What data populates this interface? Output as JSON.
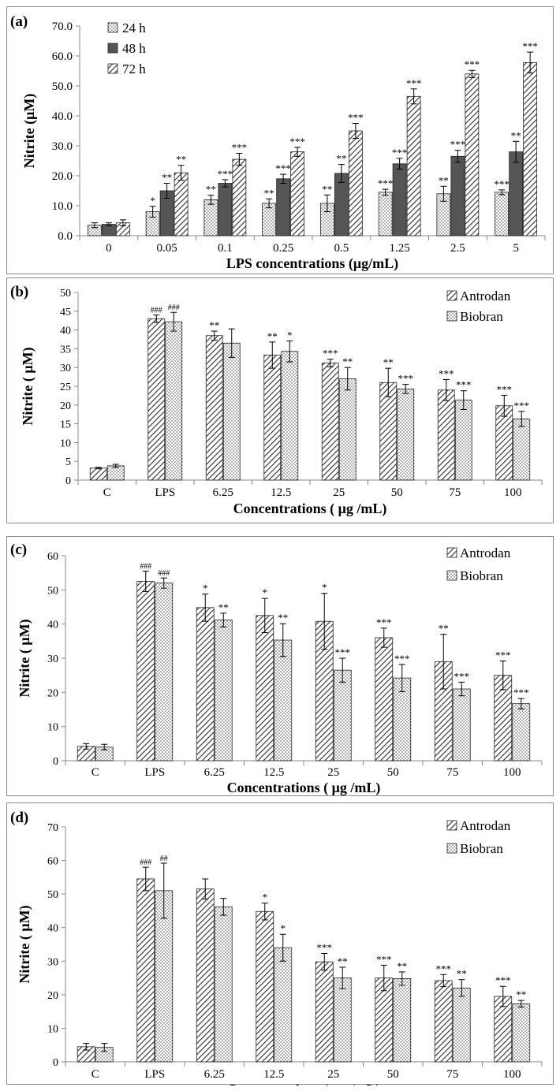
{
  "colors": {
    "frame": "#8a8a8a",
    "axis": "#888888",
    "bar_dark": "#555555",
    "bar_hatch": "#bdbdbd",
    "text": "#000000"
  },
  "chart_data": [
    {
      "type": "bar",
      "panel_label": "(a)",
      "ylabel": "Nitrite (μM)",
      "xlabel": "LPS concentrations (μg/mL)",
      "ylim": [
        0,
        70
      ],
      "yticks": [
        "0.0",
        "10.0",
        "20.0",
        "30.0",
        "40.0",
        "50.0",
        "60.0",
        "70.0"
      ],
      "legend_position": "top-left",
      "categories": [
        "0",
        "0.05",
        "0.1",
        "0.25",
        "0.5",
        "1.25",
        "2.5",
        "5"
      ],
      "series": [
        {
          "name": "24 h",
          "pattern": "dots",
          "values": [
            3.5,
            8.0,
            12.0,
            10.8,
            10.8,
            14.5,
            14.0,
            14.5
          ],
          "errors": [
            0.8,
            1.8,
            1.5,
            1.5,
            2.8,
            1.0,
            2.5,
            0.8
          ],
          "annotations": [
            "",
            "*",
            "**",
            "**",
            "**",
            "***",
            "**",
            "***"
          ]
        },
        {
          "name": "48 h",
          "pattern": "solid",
          "values": [
            3.8,
            15.0,
            17.5,
            19.0,
            20.8,
            24.0,
            26.5,
            28.0
          ],
          "errors": [
            0.5,
            2.5,
            1.2,
            1.5,
            3.0,
            1.8,
            2.0,
            3.5
          ],
          "annotations": [
            "",
            "**",
            "***",
            "***",
            "**",
            "***",
            "***",
            "**"
          ]
        },
        {
          "name": "72 h",
          "pattern": "hatch",
          "values": [
            4.3,
            21.0,
            25.5,
            28.0,
            35.0,
            46.5,
            54.0,
            57.8
          ],
          "errors": [
            1.0,
            2.5,
            2.0,
            1.5,
            2.5,
            2.5,
            1.2,
            3.5
          ],
          "annotations": [
            "",
            "**",
            "***",
            "***",
            "***",
            "***",
            "***",
            "***"
          ]
        }
      ]
    },
    {
      "type": "bar",
      "panel_label": "(b)",
      "ylabel": "Nitrite ( μM)",
      "xlabel": "Concentrations ( μg /mL)",
      "ylim": [
        0,
        50
      ],
      "yticks": [
        "0",
        "5",
        "10",
        "15",
        "20",
        "25",
        "30",
        "35",
        "40",
        "45",
        "50"
      ],
      "legend_position": "top-right",
      "categories": [
        "C",
        "LPS",
        "6.25",
        "12.5",
        "25",
        "50",
        "75",
        "100"
      ],
      "series": [
        {
          "name": "Antrodan",
          "pattern": "hatch",
          "values": [
            3.2,
            43.0,
            38.5,
            33.3,
            31.2,
            26.0,
            24.0,
            19.8
          ],
          "errors": [
            0.2,
            1.0,
            1.2,
            3.5,
            1.0,
            3.8,
            2.8,
            2.8
          ],
          "annotations": [
            "",
            "###",
            "**",
            "**",
            "***",
            "**",
            "***",
            "***"
          ]
        },
        {
          "name": "Biobran",
          "pattern": "dots",
          "values": [
            3.8,
            42.2,
            36.5,
            34.3,
            27.0,
            24.3,
            21.3,
            16.3
          ],
          "errors": [
            0.4,
            2.5,
            3.8,
            2.8,
            3.0,
            1.2,
            2.5,
            2.0
          ],
          "annotations": [
            "",
            "###",
            "",
            "*",
            "**",
            "***",
            "***",
            "***"
          ]
        }
      ]
    },
    {
      "type": "bar",
      "panel_label": "(c)",
      "ylabel": "Nitrite ( μM)",
      "xlabel": "Concentrations ( μg /mL)",
      "ylim": [
        0,
        60
      ],
      "yticks": [
        "0",
        "10",
        "20",
        "30",
        "40",
        "50",
        "60"
      ],
      "legend_position": "top-right",
      "categories": [
        "C",
        "LPS",
        "6.25",
        "12.5",
        "25",
        "50",
        "75",
        "100"
      ],
      "series": [
        {
          "name": "Antrodan",
          "pattern": "hatch",
          "values": [
            4.2,
            52.5,
            44.8,
            42.5,
            40.8,
            36.0,
            29.0,
            25.0
          ],
          "errors": [
            0.8,
            3.0,
            4.0,
            5.0,
            8.2,
            2.8,
            8.0,
            4.2
          ],
          "annotations": [
            "",
            "###",
            "*",
            "*",
            "*",
            "***",
            "**",
            "***"
          ]
        },
        {
          "name": "Biobran",
          "pattern": "dots",
          "values": [
            4.0,
            52.0,
            41.2,
            35.3,
            26.5,
            24.2,
            21.0,
            16.7
          ],
          "errors": [
            0.8,
            1.5,
            2.0,
            4.8,
            3.5,
            4.0,
            2.0,
            1.5
          ],
          "annotations": [
            "",
            "###",
            "**",
            "**",
            "***",
            "***",
            "***",
            "***"
          ]
        }
      ]
    },
    {
      "type": "bar",
      "panel_label": "(d)",
      "ylabel": "Nitrite ( μM)",
      "xlabel": "Concentrations ( μg /mL)",
      "ylim": [
        0,
        70
      ],
      "yticks": [
        "0",
        "10",
        "20",
        "30",
        "40",
        "50",
        "60",
        "70"
      ],
      "legend_position": "top-right",
      "categories": [
        "C",
        "LPS",
        "6.25",
        "12.5",
        "25",
        "50",
        "75",
        "100"
      ],
      "series": [
        {
          "name": "Antrodan",
          "pattern": "hatch",
          "values": [
            4.5,
            54.5,
            51.5,
            44.8,
            29.8,
            25.0,
            24.2,
            19.5
          ],
          "errors": [
            1.0,
            3.5,
            3.0,
            2.5,
            2.5,
            3.8,
            1.8,
            3.0
          ],
          "annotations": [
            "",
            "###",
            "",
            "*",
            "***",
            "***",
            "***",
            "***"
          ]
        },
        {
          "name": "Biobran",
          "pattern": "dots",
          "values": [
            4.3,
            51.0,
            46.2,
            34.0,
            25.0,
            24.8,
            22.0,
            17.3
          ],
          "errors": [
            1.2,
            8.2,
            2.5,
            4.0,
            3.2,
            2.0,
            2.5,
            1.0
          ],
          "annotations": [
            "",
            "##",
            "",
            "*",
            "**",
            "**",
            "**",
            "**"
          ]
        }
      ]
    }
  ]
}
